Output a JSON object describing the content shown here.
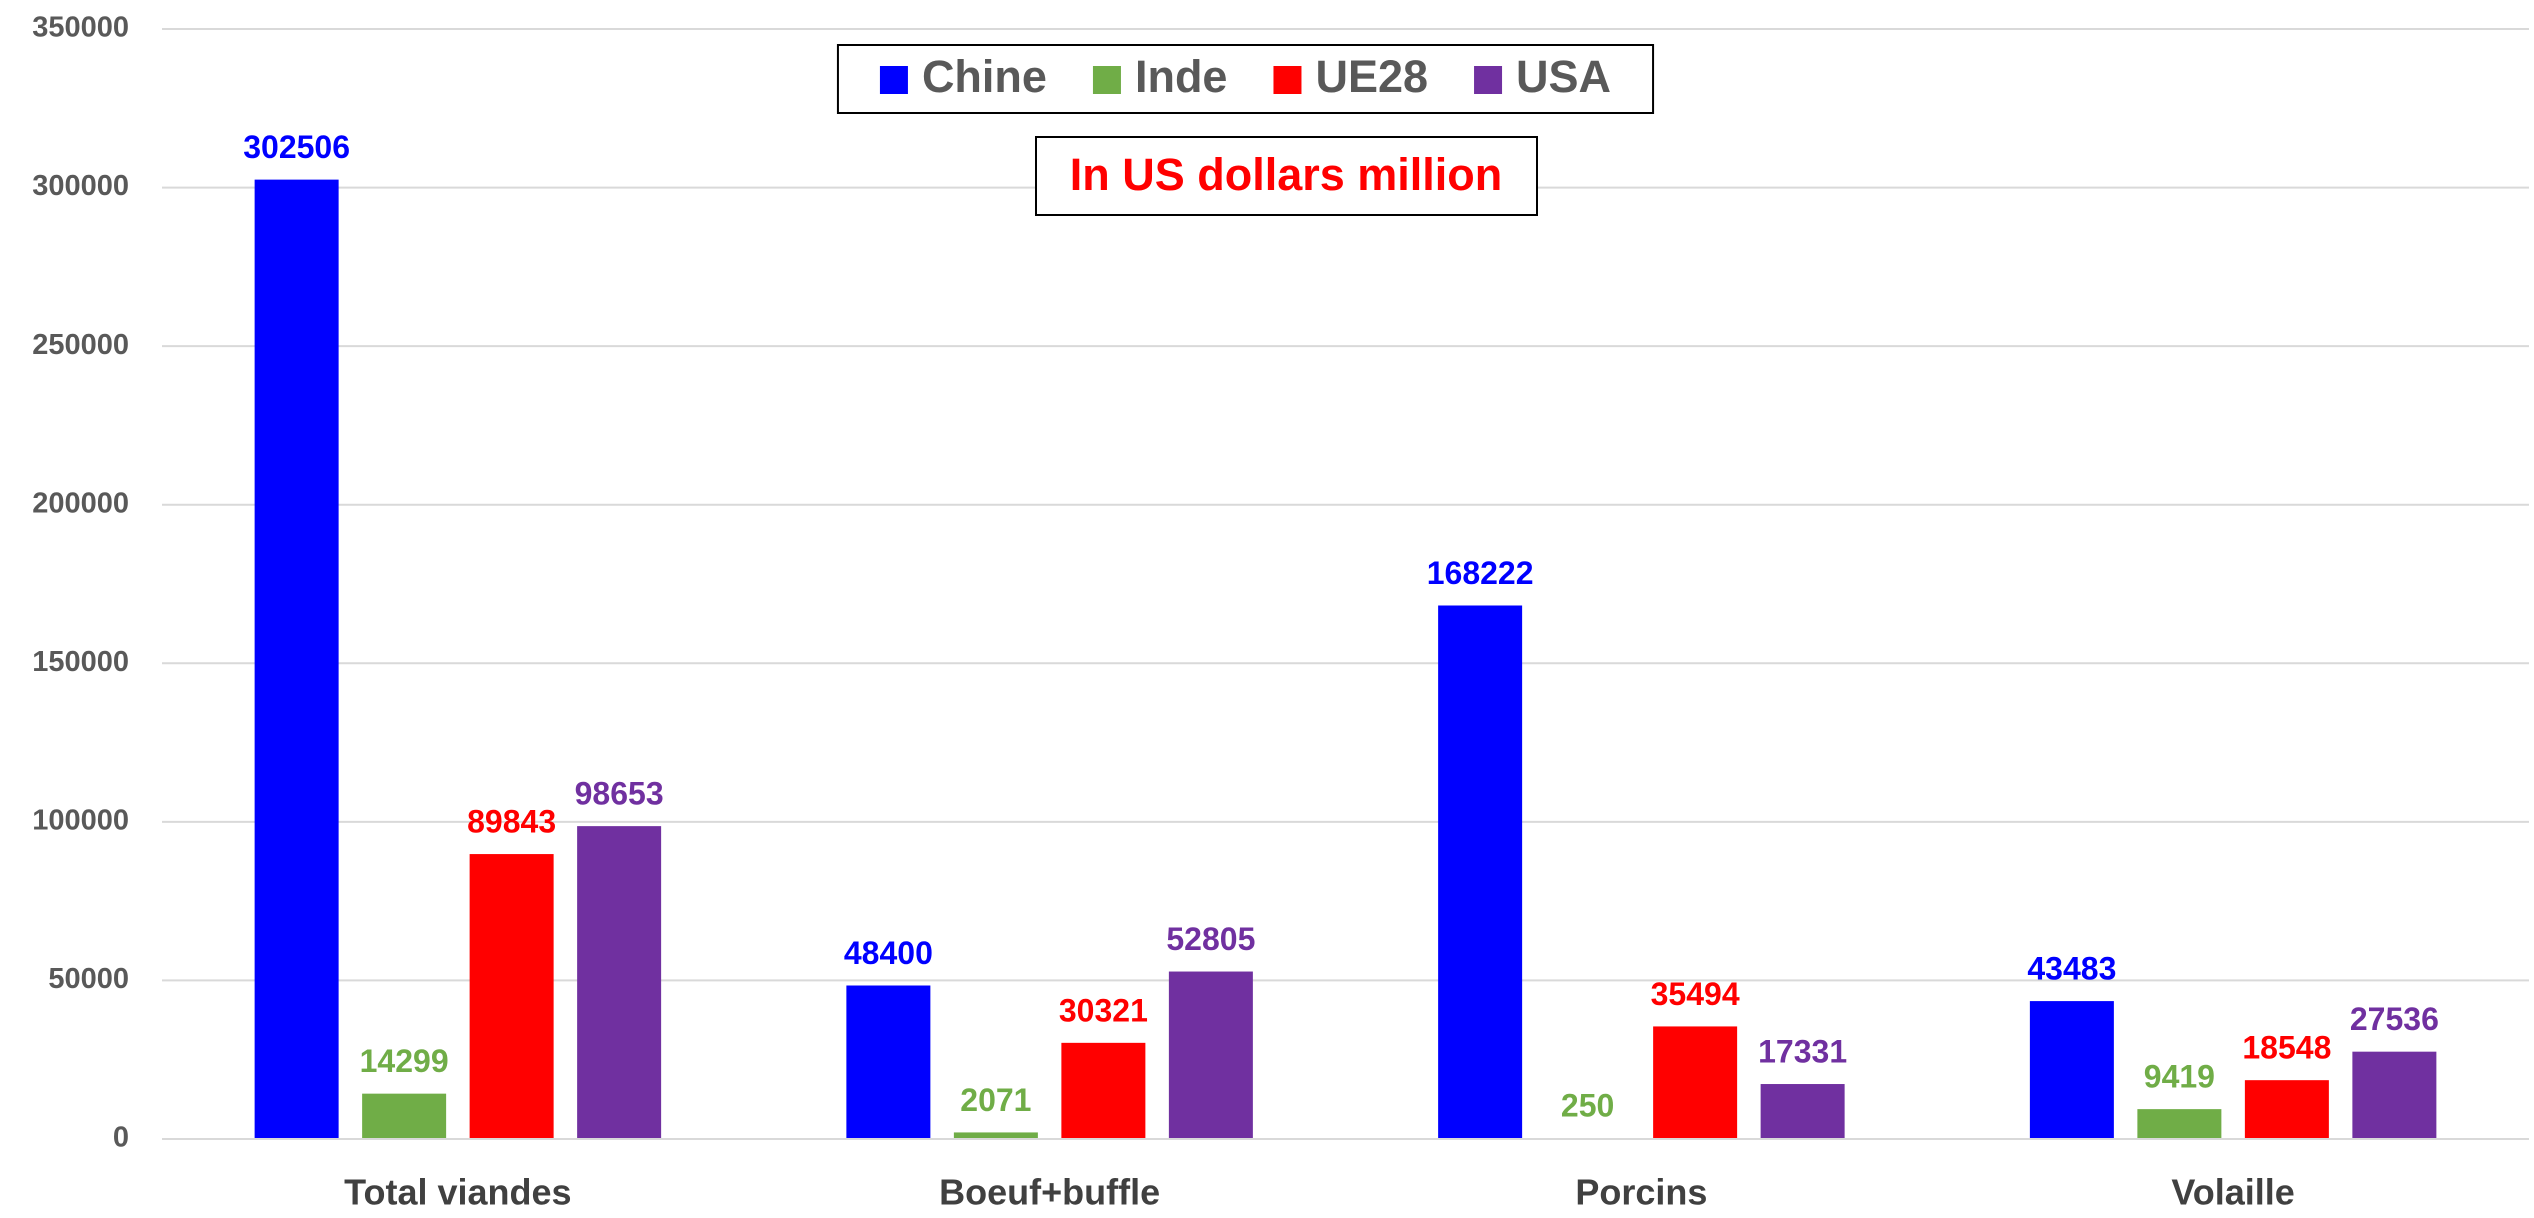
{
  "chart_data": {
    "type": "bar",
    "annotation": "In US dollars million",
    "categories": [
      "Total viandes",
      "Boeuf+buffle",
      "Porcins",
      "Volaille"
    ],
    "series": [
      {
        "name": "Chine",
        "color": "#0000ff",
        "values": [
          302506,
          48400,
          168222,
          43483
        ]
      },
      {
        "name": "Inde",
        "color": "#70ad47",
        "values": [
          14299,
          2071,
          250,
          9419
        ]
      },
      {
        "name": "UE28",
        "color": "#ff0000",
        "values": [
          89843,
          30321,
          35494,
          18548
        ]
      },
      {
        "name": "USA",
        "color": "#7030a0",
        "values": [
          98653,
          52805,
          17331,
          27536
        ]
      }
    ],
    "ylim": [
      0,
      350000
    ],
    "yticks": [
      0,
      50000,
      100000,
      150000,
      200000,
      250000,
      300000,
      350000
    ],
    "grid": true,
    "legend": "top"
  }
}
